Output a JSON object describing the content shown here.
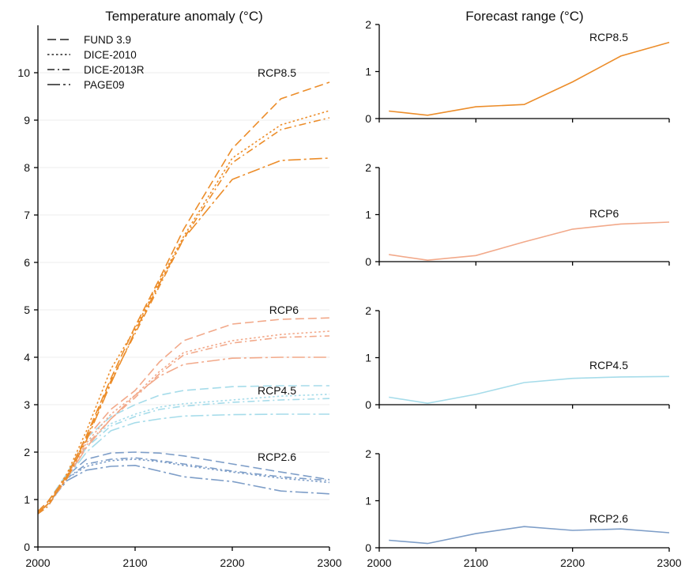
{
  "colors": {
    "RCP8.5": "#ec8d2a",
    "RCP6": "#f2a98a",
    "RCP4.5": "#a6dcea",
    "RCP2.6": "#7e9ec8"
  },
  "chart_data": [
    {
      "type": "line",
      "title": "Temperature anomaly (°C)",
      "xlabel": "",
      "ylabel": "",
      "xlim": [
        2000,
        2300
      ],
      "ylim": [
        0,
        11
      ],
      "xticks": [
        2000,
        2100,
        2200,
        2300
      ],
      "yticks": [
        0,
        1,
        2,
        3,
        4,
        5,
        6,
        7,
        8,
        9,
        10
      ],
      "grid": true,
      "legend_position": "top-left",
      "legend": [
        {
          "label": "FUND 3.9",
          "dash": "dashed"
        },
        {
          "label": "DICE-2010",
          "dash": "dotted"
        },
        {
          "label": "DICE-2013R",
          "dash": "dashdot"
        },
        {
          "label": "PAGE09",
          "dash": "longdashdot"
        }
      ],
      "annotations": [
        {
          "text": "RCP8.5",
          "x": 2226,
          "y": 10.0
        },
        {
          "text": "RCP6",
          "x": 2238,
          "y": 5.0
        },
        {
          "text": "RCP4.5",
          "x": 2226,
          "y": 3.3
        },
        {
          "text": "RCP2.6",
          "x": 2226,
          "y": 1.9
        }
      ],
      "x": [
        2000,
        2010,
        2030,
        2050,
        2075,
        2100,
        2125,
        2150,
        2200,
        2250,
        2300
      ],
      "series": [
        {
          "scenario": "RCP8.5",
          "model": "FUND 3.9",
          "values": [
            0.75,
            0.95,
            1.5,
            2.35,
            3.55,
            4.65,
            5.65,
            6.7,
            8.4,
            9.45,
            9.8
          ]
        },
        {
          "scenario": "RCP8.5",
          "model": "DICE-2010",
          "values": [
            0.7,
            0.9,
            1.55,
            2.45,
            3.75,
            4.6,
            5.6,
            6.55,
            8.2,
            8.9,
            9.2
          ]
        },
        {
          "scenario": "RCP8.5",
          "model": "DICE-2013R",
          "values": [
            0.7,
            0.85,
            1.5,
            2.3,
            3.5,
            4.5,
            5.5,
            6.5,
            8.1,
            8.8,
            9.05
          ]
        },
        {
          "scenario": "RCP8.5",
          "model": "PAGE09",
          "values": [
            0.72,
            0.9,
            1.45,
            2.25,
            3.45,
            4.55,
            5.55,
            6.5,
            7.75,
            8.15,
            8.2
          ]
        },
        {
          "scenario": "RCP6",
          "model": "FUND 3.9",
          "values": [
            0.75,
            0.95,
            1.5,
            2.3,
            2.9,
            3.3,
            3.9,
            4.35,
            4.7,
            4.8,
            4.83
          ]
        },
        {
          "scenario": "RCP6",
          "model": "DICE-2010",
          "values": [
            0.7,
            0.9,
            1.5,
            2.2,
            2.8,
            3.2,
            3.7,
            4.1,
            4.35,
            4.48,
            4.55
          ]
        },
        {
          "scenario": "RCP6",
          "model": "DICE-2013R",
          "values": [
            0.7,
            0.85,
            1.45,
            2.15,
            2.7,
            3.15,
            3.65,
            4.05,
            4.3,
            4.42,
            4.45
          ]
        },
        {
          "scenario": "RCP6",
          "model": "PAGE09",
          "values": [
            0.72,
            0.9,
            1.45,
            2.1,
            2.7,
            3.2,
            3.6,
            3.85,
            3.98,
            4.0,
            4.0
          ]
        },
        {
          "scenario": "RCP4.5",
          "model": "FUND 3.9",
          "values": [
            0.75,
            0.95,
            1.55,
            2.3,
            2.75,
            3.0,
            3.2,
            3.3,
            3.38,
            3.4,
            3.4
          ]
        },
        {
          "scenario": "RCP4.5",
          "model": "DICE-2010",
          "values": [
            0.7,
            0.9,
            1.5,
            2.2,
            2.6,
            2.8,
            2.95,
            3.02,
            3.1,
            3.18,
            3.22
          ]
        },
        {
          "scenario": "RCP4.5",
          "model": "DICE-2013R",
          "values": [
            0.7,
            0.85,
            1.45,
            2.1,
            2.55,
            2.75,
            2.9,
            2.97,
            3.05,
            3.1,
            3.13
          ]
        },
        {
          "scenario": "RCP4.5",
          "model": "PAGE09",
          "values": [
            0.72,
            0.9,
            1.45,
            2.0,
            2.45,
            2.62,
            2.7,
            2.76,
            2.79,
            2.8,
            2.8
          ]
        },
        {
          "scenario": "RCP2.6",
          "model": "FUND 3.9",
          "values": [
            0.75,
            0.95,
            1.5,
            1.85,
            1.98,
            2.0,
            1.98,
            1.92,
            1.75,
            1.58,
            1.42
          ]
        },
        {
          "scenario": "RCP2.6",
          "model": "DICE-2010",
          "values": [
            0.7,
            0.9,
            1.45,
            1.7,
            1.82,
            1.85,
            1.8,
            1.72,
            1.58,
            1.45,
            1.36
          ]
        },
        {
          "scenario": "RCP2.6",
          "model": "DICE-2013R",
          "values": [
            0.7,
            0.85,
            1.45,
            1.75,
            1.85,
            1.88,
            1.82,
            1.75,
            1.6,
            1.48,
            1.4
          ]
        },
        {
          "scenario": "RCP2.6",
          "model": "PAGE09",
          "values": [
            0.72,
            0.9,
            1.4,
            1.62,
            1.7,
            1.72,
            1.6,
            1.48,
            1.38,
            1.18,
            1.12
          ]
        }
      ]
    },
    {
      "type": "line",
      "title": "Forecast range (°C)",
      "xlim": [
        2000,
        2300
      ],
      "xticks": [
        2000,
        2100,
        2200,
        2300
      ],
      "panels": [
        {
          "label": "RCP8.5",
          "ylim": [
            0,
            2
          ],
          "yticks": [
            0,
            1,
            2
          ],
          "x": [
            2010,
            2050,
            2100,
            2150,
            2200,
            2250,
            2300
          ],
          "values": [
            0.16,
            0.07,
            0.25,
            0.3,
            0.78,
            1.33,
            1.62
          ]
        },
        {
          "label": "RCP6",
          "ylim": [
            0,
            2
          ],
          "yticks": [
            0,
            1,
            2
          ],
          "x": [
            2010,
            2050,
            2100,
            2150,
            2200,
            2250,
            2300
          ],
          "values": [
            0.15,
            0.03,
            0.13,
            0.42,
            0.69,
            0.8,
            0.84
          ]
        },
        {
          "label": "RCP4.5",
          "ylim": [
            0,
            2
          ],
          "yticks": [
            0,
            1,
            2
          ],
          "x": [
            2010,
            2050,
            2100,
            2150,
            2200,
            2250,
            2300
          ],
          "values": [
            0.16,
            0.03,
            0.22,
            0.47,
            0.56,
            0.59,
            0.6
          ]
        },
        {
          "label": "RCP2.6",
          "ylim": [
            0,
            2
          ],
          "yticks": [
            0,
            1,
            2
          ],
          "x": [
            2010,
            2050,
            2100,
            2150,
            2200,
            2250,
            2300
          ],
          "values": [
            0.16,
            0.09,
            0.3,
            0.45,
            0.37,
            0.4,
            0.32
          ]
        }
      ]
    }
  ]
}
